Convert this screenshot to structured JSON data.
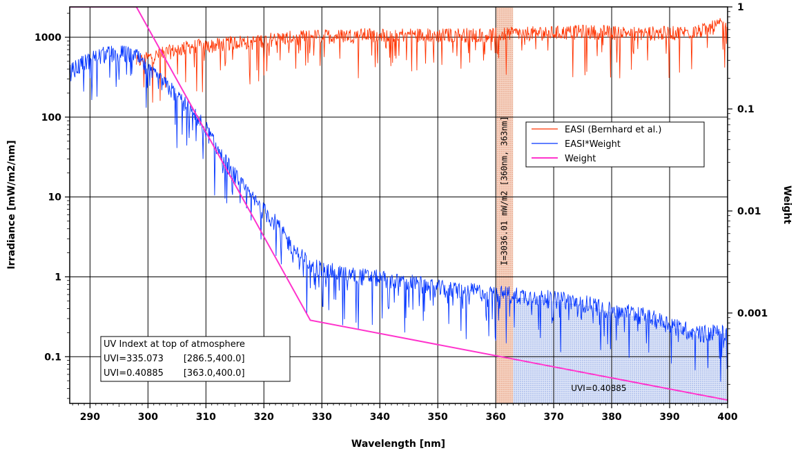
{
  "chart_data": {
    "type": "line",
    "xlabel": "Wavelength [nm]",
    "ylabel_left": "Irradiance [mW/m2/nm]",
    "ylabel_right": "Weight",
    "xlim": [
      286.5,
      400
    ],
    "ylim_left": [
      0.026,
      2400
    ],
    "ylim_right": [
      0.00013,
      1.0
    ],
    "x_scale": "linear",
    "y_scale": "log",
    "grid": true,
    "legend_position": "center-right",
    "x_ticks": [
      290,
      300,
      310,
      320,
      330,
      340,
      350,
      360,
      370,
      380,
      390,
      400
    ],
    "x_tick_labels": [
      "290",
      "300",
      "310",
      "320",
      "330",
      "340",
      "350",
      "360",
      "370",
      "380",
      "390",
      "400"
    ],
    "y_left_ticks": [
      0.1,
      1,
      10,
      100,
      1000
    ],
    "y_left_tick_labels": [
      "0.1",
      "1",
      "10",
      "100",
      "1000"
    ],
    "y_right_ticks": [
      0.001,
      0.01,
      0.1,
      1
    ],
    "y_right_tick_labels": [
      "0.001",
      "0.01",
      "0.1",
      "1"
    ],
    "series": [
      {
        "name": "EASI (Bernhard et al.)",
        "color": "#ff3300",
        "axis": "left",
        "x": [
          298,
          300,
          302,
          304,
          306,
          308,
          310,
          312,
          314,
          316,
          318,
          320,
          322,
          324,
          326,
          328,
          330,
          335,
          340,
          345,
          350,
          355,
          360,
          365,
          370,
          375,
          380,
          385,
          390,
          395,
          400
        ],
        "values": [
          500,
          560,
          620,
          680,
          740,
          800,
          780,
          820,
          860,
          900,
          880,
          950,
          980,
          1000,
          1020,
          1050,
          1050,
          1080,
          1100,
          1100,
          1080,
          1100,
          1100,
          1150,
          1150,
          1200,
          1180,
          1150,
          1150,
          1200,
          1550
        ]
      },
      {
        "name": "EASI*Weight",
        "color": "#0033ff",
        "axis": "left",
        "x": [
          286.5,
          288,
          290,
          292,
          294,
          296,
          298,
          300,
          302,
          304,
          306,
          308,
          310,
          312,
          314,
          316,
          318,
          320,
          322,
          324,
          326,
          328,
          330,
          335,
          340,
          345,
          350,
          355,
          360,
          365,
          370,
          375,
          380,
          385,
          390,
          395,
          400
        ],
        "values": [
          380,
          450,
          550,
          620,
          650,
          650,
          600,
          400,
          300,
          230,
          160,
          110,
          75,
          40,
          25,
          15,
          10,
          7,
          5,
          3,
          2,
          1.5,
          1.3,
          1.1,
          1.0,
          0.9,
          0.75,
          0.7,
          0.65,
          0.6,
          0.55,
          0.5,
          0.4,
          0.35,
          0.27,
          0.2,
          0.22
        ]
      },
      {
        "name": "Weight",
        "color": "#ff33cc",
        "axis": "right",
        "x": [
          286.5,
          298,
          328,
          400
        ],
        "values": [
          1.0,
          1.0,
          0.00085,
          0.00014
        ]
      }
    ],
    "highlight_band": {
      "x_range": [
        360,
        363
      ],
      "label": "I=3036.01 mW/m2 [360nm, 363nm]"
    },
    "shaded_region": {
      "x_range": [
        363,
        400
      ],
      "label": "UVI=0.40885"
    },
    "annotation_box": {
      "lines": [
        "UV Indext at top of atmosphere",
        "UVI=335.073       [286.5,400.0]",
        "UVI=0.40885       [363.0,400.0]"
      ]
    }
  }
}
